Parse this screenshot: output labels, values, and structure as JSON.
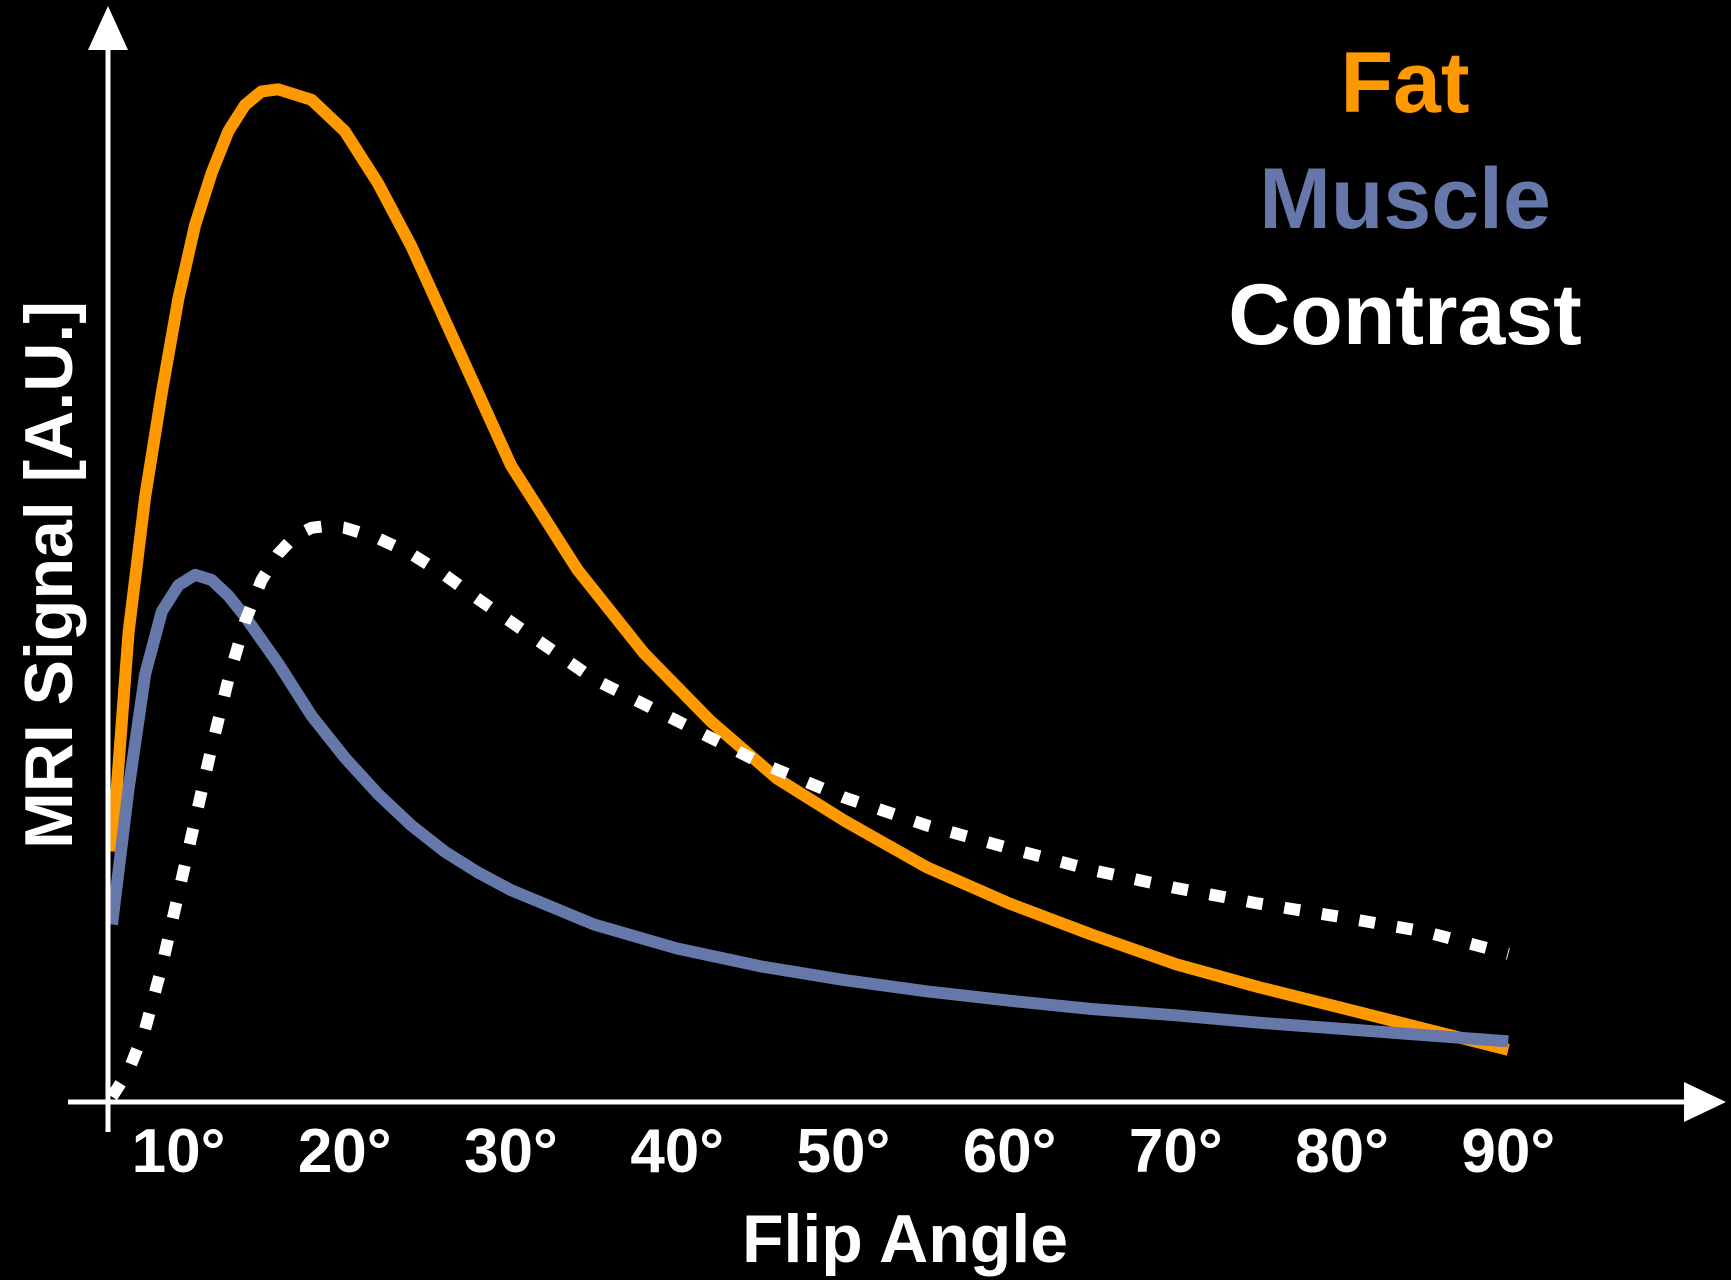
{
  "chart_data": {
    "type": "line",
    "xlabel": "Flip Angle",
    "ylabel": "MRI Signal [A.U.]",
    "x_ticks": [
      "10°",
      "20°",
      "30°",
      "40°",
      "50°",
      "60°",
      "70°",
      "80°",
      "90°"
    ],
    "x_tick_values": [
      10,
      20,
      30,
      40,
      50,
      60,
      70,
      80,
      90
    ],
    "xlim": [
      6,
      96
    ],
    "ylim": [
      0,
      100
    ],
    "grid": false,
    "legend_position": "top-right",
    "series": [
      {
        "name": "Fat",
        "color": "#FF9900",
        "style": "solid",
        "x": [
          6,
          7,
          8,
          9,
          10,
          11,
          12,
          13,
          14,
          15,
          16,
          18,
          20,
          22,
          24,
          26,
          28,
          30,
          34,
          38,
          42,
          46,
          50,
          55,
          60,
          65,
          70,
          75,
          80,
          85,
          90
        ],
        "y": [
          24,
          45,
          58,
          68,
          77,
          84,
          89,
          93,
          95.5,
          96.8,
          97,
          96,
          93,
          88,
          82,
          75,
          68,
          61,
          51,
          43,
          36.5,
          31,
          27,
          22.5,
          19,
          16,
          13.2,
          11,
          9,
          7,
          5
        ]
      },
      {
        "name": "Muscle",
        "color": "#6677AA",
        "style": "solid",
        "x": [
          6,
          7,
          8,
          9,
          10,
          11,
          12,
          13,
          14,
          16,
          18,
          20,
          22,
          24,
          26,
          28,
          30,
          35,
          40,
          45,
          50,
          55,
          60,
          65,
          70,
          75,
          80,
          85,
          90
        ],
        "y": [
          17,
          30,
          41,
          47,
          49.5,
          50.5,
          50,
          48.5,
          46.5,
          42,
          37,
          33,
          29.5,
          26.5,
          24,
          22,
          20.3,
          17,
          14.7,
          13,
          11.7,
          10.6,
          9.7,
          8.9,
          8.3,
          7.6,
          7,
          6.4,
          5.8
        ]
      },
      {
        "name": "Contrast",
        "color": "#FFFFFF",
        "style": "dotted",
        "x": [
          6,
          7,
          8,
          9,
          10,
          11,
          12,
          13,
          14,
          15,
          16,
          17,
          18,
          19,
          20,
          22,
          24,
          26,
          28,
          30,
          35,
          40,
          45,
          50,
          55,
          60,
          65,
          70,
          75,
          80,
          85,
          90
        ],
        "y": [
          0.5,
          3,
          7,
          13,
          20,
          27,
          34,
          40.5,
          46,
          50,
          52.5,
          54.2,
          55,
          55.2,
          55,
          54,
          52.5,
          50.5,
          48.2,
          46,
          40.5,
          36.5,
          32.5,
          29.2,
          26.5,
          24.3,
          22.2,
          20.5,
          19,
          17.7,
          16.3,
          14.2
        ]
      }
    ]
  }
}
